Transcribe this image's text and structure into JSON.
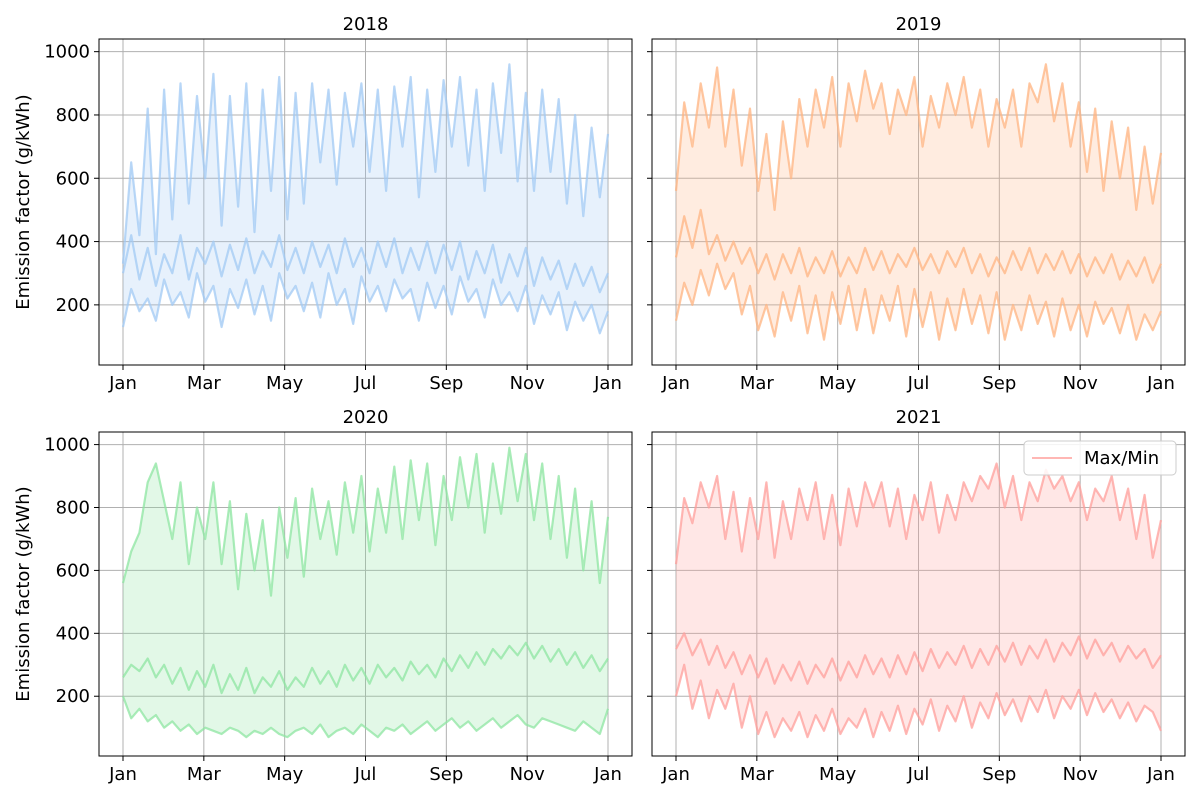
{
  "chart_data": [
    {
      "type": "line",
      "title": "2018",
      "ylabel": "Emission factor (g/kWh)",
      "color": "#a1c9f4",
      "ylim": [
        10,
        1040
      ],
      "yticks": [
        200,
        400,
        600,
        800,
        1000
      ],
      "xticks": [
        "Jan",
        "Mar",
        "May",
        "Jul",
        "Sep",
        "Nov",
        "Jan"
      ],
      "series": [
        {
          "name": "Max/Min",
          "role": "max",
          "values": [
            330,
            650,
            420,
            820,
            360,
            880,
            470,
            900,
            520,
            860,
            600,
            930,
            450,
            860,
            510,
            900,
            430,
            880,
            560,
            920,
            470,
            870,
            520,
            900,
            650,
            880,
            580,
            870,
            700,
            900,
            620,
            880,
            560,
            890,
            700,
            920,
            540,
            880,
            620,
            910,
            700,
            920,
            640,
            880,
            560,
            900,
            680,
            960,
            590,
            870,
            560,
            880,
            620,
            850,
            520,
            800,
            480,
            760,
            540,
            740
          ]
        },
        {
          "name": "Max/Min",
          "role": "min",
          "values": [
            130,
            250,
            180,
            220,
            150,
            280,
            200,
            240,
            160,
            300,
            210,
            260,
            130,
            250,
            190,
            280,
            170,
            260,
            150,
            300,
            220,
            260,
            180,
            270,
            160,
            300,
            200,
            250,
            140,
            290,
            210,
            260,
            180,
            280,
            220,
            250,
            150,
            270,
            190,
            260,
            170,
            290,
            210,
            250,
            160,
            280,
            200,
            240,
            180,
            260,
            140,
            230,
            170,
            240,
            120,
            210,
            150,
            200,
            110,
            180
          ]
        },
        {
          "name": "Max/Min",
          "role": "mid",
          "values": [
            300,
            420,
            280,
            380,
            260,
            360,
            300,
            420,
            280,
            380,
            330,
            400,
            290,
            390,
            310,
            410,
            300,
            370,
            320,
            420,
            310,
            380,
            300,
            400,
            320,
            390,
            300,
            410,
            320,
            380,
            300,
            400,
            320,
            410,
            300,
            380,
            310,
            400,
            300,
            390,
            310,
            400,
            280,
            370,
            300,
            390,
            270,
            360,
            290,
            380,
            260,
            350,
            280,
            340,
            250,
            330,
            260,
            320,
            240,
            300
          ]
        }
      ]
    },
    {
      "type": "line",
      "title": "2019",
      "ylabel": "",
      "color": "#ffb482",
      "ylim": [
        10,
        1040
      ],
      "yticks": [
        200,
        400,
        600,
        800,
        1000
      ],
      "xticks": [
        "Jan",
        "Mar",
        "May",
        "Jul",
        "Sep",
        "Nov",
        "Jan"
      ],
      "series": [
        {
          "name": "Max/Min",
          "role": "max",
          "values": [
            560,
            840,
            700,
            900,
            760,
            950,
            700,
            880,
            640,
            820,
            560,
            740,
            500,
            780,
            600,
            850,
            700,
            880,
            760,
            920,
            700,
            900,
            780,
            940,
            820,
            900,
            740,
            880,
            800,
            920,
            700,
            860,
            760,
            900,
            800,
            920,
            760,
            880,
            700,
            850,
            760,
            880,
            700,
            900,
            840,
            960,
            780,
            900,
            700,
            840,
            620,
            820,
            560,
            780,
            600,
            760,
            500,
            700,
            520,
            680
          ]
        },
        {
          "name": "Max/Min",
          "role": "min",
          "values": [
            150,
            270,
            200,
            310,
            230,
            330,
            250,
            300,
            170,
            260,
            120,
            200,
            100,
            240,
            150,
            260,
            110,
            230,
            90,
            240,
            140,
            260,
            120,
            250,
            110,
            230,
            150,
            260,
            100,
            250,
            130,
            240,
            90,
            220,
            120,
            250,
            140,
            230,
            110,
            240,
            90,
            200,
            120,
            230,
            140,
            210,
            100,
            220,
            120,
            200,
            100,
            210,
            140,
            190,
            110,
            200,
            90,
            170,
            120,
            180
          ]
        },
        {
          "name": "Max/Min",
          "role": "mid",
          "values": [
            350,
            480,
            380,
            500,
            360,
            420,
            340,
            400,
            330,
            380,
            300,
            360,
            280,
            360,
            300,
            380,
            290,
            350,
            300,
            370,
            290,
            350,
            300,
            380,
            310,
            370,
            300,
            360,
            320,
            380,
            310,
            360,
            300,
            370,
            320,
            380,
            300,
            360,
            290,
            350,
            300,
            370,
            310,
            380,
            300,
            360,
            310,
            370,
            300,
            360,
            290,
            350,
            300,
            360,
            280,
            340,
            290,
            350,
            270,
            330
          ]
        }
      ]
    },
    {
      "type": "line",
      "title": "2020",
      "ylabel": "Emission factor (g/kWh)",
      "color": "#8de5a1",
      "ylim": [
        10,
        1040
      ],
      "yticks": [
        200,
        400,
        600,
        800,
        1000
      ],
      "xticks": [
        "Jan",
        "Mar",
        "May",
        "Jul",
        "Sep",
        "Nov",
        "Jan"
      ],
      "series": [
        {
          "name": "Max/Min",
          "role": "max",
          "values": [
            560,
            660,
            720,
            880,
            940,
            820,
            700,
            880,
            620,
            800,
            700,
            880,
            620,
            820,
            540,
            780,
            600,
            760,
            520,
            800,
            640,
            830,
            580,
            860,
            700,
            820,
            650,
            880,
            720,
            900,
            660,
            860,
            720,
            930,
            700,
            950,
            760,
            940,
            680,
            900,
            760,
            960,
            800,
            970,
            720,
            940,
            780,
            990,
            820,
            970,
            760,
            940,
            700,
            900,
            640,
            860,
            600,
            820,
            560,
            770
          ]
        },
        {
          "name": "Max/Min",
          "role": "min",
          "values": [
            200,
            130,
            160,
            120,
            140,
            100,
            120,
            90,
            110,
            80,
            100,
            90,
            80,
            100,
            90,
            70,
            90,
            80,
            100,
            80,
            70,
            90,
            100,
            80,
            110,
            70,
            90,
            100,
            80,
            110,
            90,
            70,
            100,
            90,
            110,
            80,
            100,
            120,
            90,
            110,
            130,
            100,
            120,
            90,
            110,
            130,
            100,
            120,
            140,
            110,
            100,
            130,
            120,
            110,
            100,
            90,
            120,
            100,
            80,
            160
          ]
        },
        {
          "name": "Max/Min",
          "role": "mid",
          "values": [
            260,
            300,
            280,
            320,
            260,
            300,
            240,
            290,
            220,
            280,
            230,
            300,
            210,
            270,
            220,
            290,
            210,
            260,
            230,
            280,
            220,
            260,
            230,
            290,
            240,
            280,
            230,
            300,
            250,
            290,
            240,
            300,
            260,
            290,
            250,
            310,
            270,
            300,
            260,
            320,
            280,
            330,
            290,
            340,
            300,
            350,
            320,
            360,
            330,
            370,
            320,
            360,
            310,
            350,
            300,
            340,
            290,
            330,
            280,
            320
          ]
        }
      ]
    },
    {
      "type": "line",
      "title": "2021",
      "ylabel": "",
      "color": "#ff9f9b",
      "ylim": [
        10,
        1040
      ],
      "yticks": [
        200,
        400,
        600,
        800,
        1000
      ],
      "xticks": [
        "Jan",
        "Mar",
        "May",
        "Jul",
        "Sep",
        "Nov",
        "Jan"
      ],
      "legend": {
        "label": "Max/Min",
        "position": "upper right"
      },
      "series": [
        {
          "name": "Max/Min",
          "role": "max",
          "values": [
            620,
            830,
            750,
            880,
            800,
            900,
            700,
            850,
            660,
            830,
            700,
            880,
            640,
            820,
            700,
            860,
            760,
            880,
            700,
            840,
            680,
            860,
            740,
            880,
            800,
            880,
            740,
            860,
            700,
            840,
            760,
            880,
            720,
            840,
            760,
            880,
            820,
            900,
            860,
            940,
            800,
            900,
            760,
            880,
            820,
            920,
            860,
            900,
            820,
            880,
            760,
            860,
            820,
            900,
            760,
            860,
            700,
            840,
            640,
            760
          ]
        },
        {
          "name": "Max/Min",
          "role": "min",
          "values": [
            200,
            300,
            160,
            250,
            130,
            220,
            160,
            240,
            100,
            200,
            80,
            150,
            70,
            130,
            90,
            150,
            70,
            140,
            90,
            160,
            80,
            130,
            100,
            160,
            70,
            150,
            90,
            170,
            80,
            160,
            110,
            190,
            90,
            170,
            120,
            200,
            100,
            180,
            130,
            210,
            140,
            190,
            120,
            200,
            150,
            220,
            130,
            200,
            160,
            220,
            140,
            210,
            150,
            190,
            130,
            180,
            120,
            170,
            150,
            90
          ]
        },
        {
          "name": "Max/Min",
          "role": "mid",
          "values": [
            350,
            400,
            330,
            380,
            300,
            360,
            290,
            340,
            270,
            330,
            260,
            320,
            240,
            300,
            250,
            310,
            240,
            300,
            260,
            320,
            250,
            310,
            260,
            330,
            270,
            320,
            260,
            330,
            270,
            340,
            280,
            350,
            290,
            340,
            300,
            360,
            290,
            350,
            300,
            360,
            310,
            370,
            300,
            360,
            320,
            380,
            310,
            370,
            330,
            390,
            320,
            380,
            330,
            370,
            310,
            360,
            320,
            350,
            290,
            330
          ]
        }
      ]
    }
  ]
}
